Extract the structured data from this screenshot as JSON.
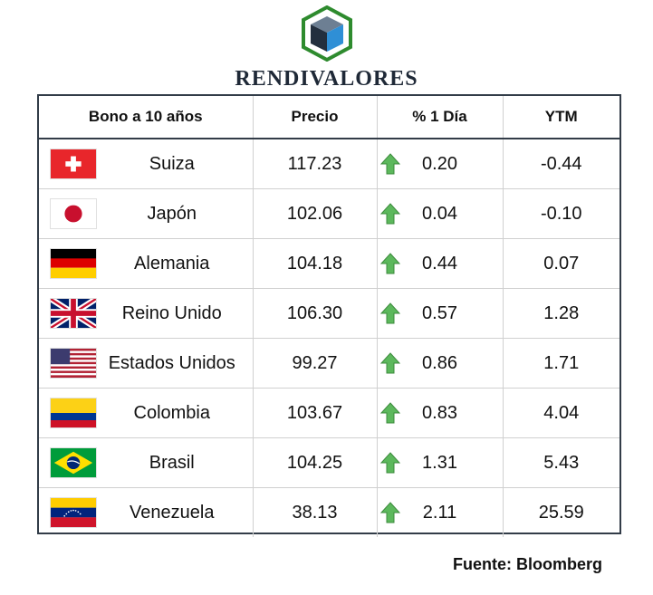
{
  "brand": {
    "name": "RENDIVALORES"
  },
  "table": {
    "headers": [
      "Bono a 10 años",
      "Precio",
      "% 1 Día",
      "YTM"
    ],
    "rows": [
      {
        "country": "Suiza",
        "flag": "switzerland-flag",
        "price": "117.23",
        "change": "0.20",
        "ytm": "-0.44"
      },
      {
        "country": "Japón",
        "flag": "japan-flag",
        "price": "102.06",
        "change": "0.04",
        "ytm": "-0.10"
      },
      {
        "country": "Alemania",
        "flag": "germany-flag",
        "price": "104.18",
        "change": "0.44",
        "ytm": "0.07"
      },
      {
        "country": "Reino Unido",
        "flag": "uk-flag",
        "price": "106.30",
        "change": "0.57",
        "ytm": "1.28"
      },
      {
        "country": "Estados Unidos",
        "flag": "usa-flag",
        "price": "99.27",
        "change": "0.86",
        "ytm": "1.71"
      },
      {
        "country": "Colombia",
        "flag": "colombia-flag",
        "price": "103.67",
        "change": "0.83",
        "ytm": "4.04"
      },
      {
        "country": "Brasil",
        "flag": "brazil-flag",
        "price": "104.25",
        "change": "1.31",
        "ytm": "5.43"
      },
      {
        "country": "Venezuela",
        "flag": "venezuela-flag",
        "price": "38.13",
        "change": "2.11",
        "ytm": "25.59"
      }
    ],
    "change_icon": "up-arrow-icon",
    "up_color": "#5cb85c"
  },
  "source": "Fuente: Bloomberg"
}
